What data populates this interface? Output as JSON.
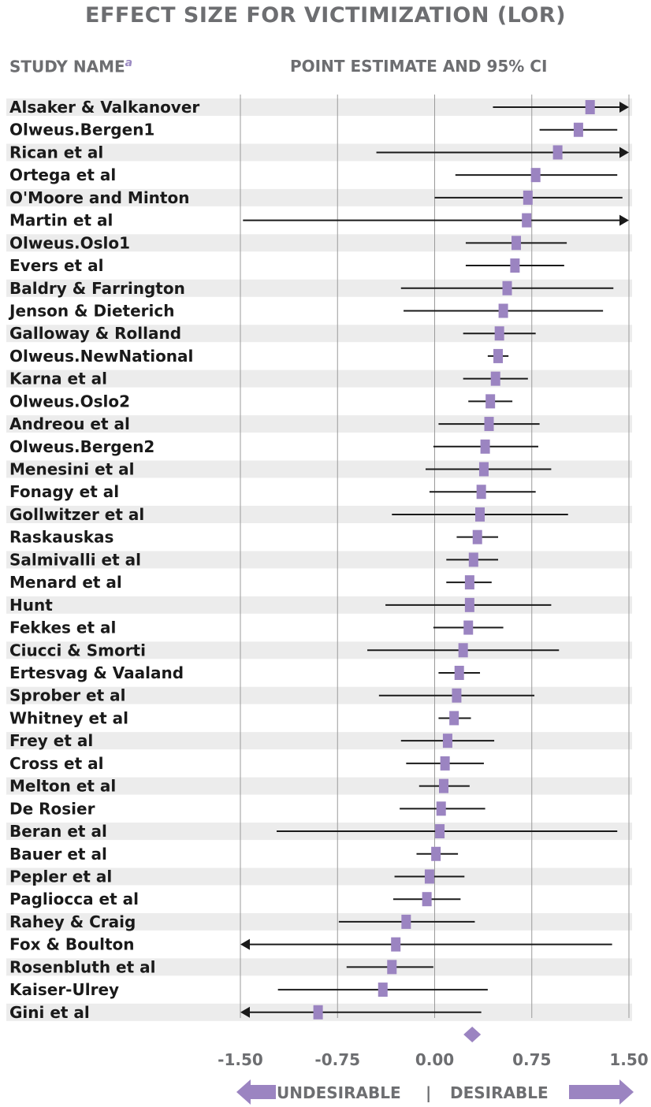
{
  "header": {
    "title": "EFFECT SIZE FOR VICTIMIZATION (LOR)",
    "study_column": "STUDY NAME",
    "study_sup": "a",
    "estimate_column": "POINT ESTIMATE AND 95% CI"
  },
  "footer": {
    "undesirable": "UNDESIRABLE",
    "separator": "|",
    "desirable": "DESIRABLE"
  },
  "colors": {
    "marker": "#9b84c1",
    "band": "#ececec",
    "line": "#1a1a1a",
    "text": "#1a1a1a",
    "grid": "#9a9a9a",
    "header_text": "#6d6e71"
  },
  "chart_data": {
    "type": "forest",
    "xlim": [
      -1.5,
      1.5
    ],
    "x_ticks": [
      -1.5,
      -0.75,
      0.0,
      0.75,
      1.5
    ],
    "x_tick_labels": [
      "-1.50",
      "-0.75",
      "0.00",
      "0.75",
      "1.50"
    ],
    "grid": true,
    "arrow_beyond_axis": true,
    "summary": {
      "estimate": 0.29
    },
    "studies": [
      {
        "name": "Alsaker & Valkanover",
        "estimate": 1.2,
        "lower": 0.45,
        "upper": 1.75
      },
      {
        "name": "Olweus.Bergen1",
        "estimate": 1.11,
        "lower": 0.81,
        "upper": 1.41
      },
      {
        "name": "Rican et al",
        "estimate": 0.95,
        "lower": -0.45,
        "upper": 1.75
      },
      {
        "name": "Ortega et al",
        "estimate": 0.78,
        "lower": 0.16,
        "upper": 1.41
      },
      {
        "name": "O'Moore and Minton",
        "estimate": 0.72,
        "lower": 0.0,
        "upper": 1.45
      },
      {
        "name": "Martin et al",
        "estimate": 0.71,
        "lower": -1.48,
        "upper": 1.75
      },
      {
        "name": "Olweus.Oslo1",
        "estimate": 0.63,
        "lower": 0.24,
        "upper": 1.02
      },
      {
        "name": "Evers et al",
        "estimate": 0.62,
        "lower": 0.24,
        "upper": 1.0
      },
      {
        "name": "Baldry & Farrington",
        "estimate": 0.56,
        "lower": -0.26,
        "upper": 1.38
      },
      {
        "name": "Jenson & Dieterich",
        "estimate": 0.53,
        "lower": -0.24,
        "upper": 1.3
      },
      {
        "name": "Galloway & Rolland",
        "estimate": 0.5,
        "lower": 0.22,
        "upper": 0.78
      },
      {
        "name": "Olweus.NewNational",
        "estimate": 0.49,
        "lower": 0.41,
        "upper": 0.57
      },
      {
        "name": "Karna et al",
        "estimate": 0.47,
        "lower": 0.22,
        "upper": 0.72
      },
      {
        "name": "Olweus.Oslo2",
        "estimate": 0.43,
        "lower": 0.26,
        "upper": 0.6
      },
      {
        "name": "Andreou et al",
        "estimate": 0.42,
        "lower": 0.03,
        "upper": 0.81
      },
      {
        "name": "Olweus.Bergen2",
        "estimate": 0.39,
        "lower": -0.01,
        "upper": 0.8
      },
      {
        "name": "Menesini et al",
        "estimate": 0.38,
        "lower": -0.07,
        "upper": 0.9
      },
      {
        "name": "Fonagy et al",
        "estimate": 0.36,
        "lower": -0.04,
        "upper": 0.78
      },
      {
        "name": "Gollwitzer et al",
        "estimate": 0.35,
        "lower": -0.33,
        "upper": 1.03
      },
      {
        "name": "Raskauskas",
        "estimate": 0.33,
        "lower": 0.17,
        "upper": 0.49
      },
      {
        "name": "Salmivalli et al",
        "estimate": 0.3,
        "lower": 0.09,
        "upper": 0.49
      },
      {
        "name": "Menard et al",
        "estimate": 0.27,
        "lower": 0.09,
        "upper": 0.44
      },
      {
        "name": "Hunt",
        "estimate": 0.27,
        "lower": -0.38,
        "upper": 0.9
      },
      {
        "name": "Fekkes et al",
        "estimate": 0.26,
        "lower": -0.01,
        "upper": 0.53
      },
      {
        "name": "Ciucci & Smorti",
        "estimate": 0.22,
        "lower": -0.52,
        "upper": 0.96
      },
      {
        "name": "Ertesvag & Vaaland",
        "estimate": 0.19,
        "lower": 0.03,
        "upper": 0.35
      },
      {
        "name": "Sprober et al",
        "estimate": 0.17,
        "lower": -0.43,
        "upper": 0.77
      },
      {
        "name": "Whitney et al",
        "estimate": 0.15,
        "lower": 0.03,
        "upper": 0.28
      },
      {
        "name": "Frey et al",
        "estimate": 0.1,
        "lower": -0.26,
        "upper": 0.46
      },
      {
        "name": "Cross et al",
        "estimate": 0.08,
        "lower": -0.22,
        "upper": 0.38
      },
      {
        "name": "Melton et al",
        "estimate": 0.07,
        "lower": -0.12,
        "upper": 0.27
      },
      {
        "name": "De Rosier",
        "estimate": 0.05,
        "lower": -0.27,
        "upper": 0.39
      },
      {
        "name": "Beran et al",
        "estimate": 0.04,
        "lower": -1.22,
        "upper": 1.41
      },
      {
        "name": "Bauer et al",
        "estimate": 0.01,
        "lower": -0.14,
        "upper": 0.18
      },
      {
        "name": "Pepler et al",
        "estimate": -0.04,
        "lower": -0.31,
        "upper": 0.23
      },
      {
        "name": "Pagliocca et al",
        "estimate": -0.06,
        "lower": -0.32,
        "upper": 0.2
      },
      {
        "name": "Rahey & Craig",
        "estimate": -0.22,
        "lower": -0.74,
        "upper": 0.31
      },
      {
        "name": "Fox & Boulton",
        "estimate": -0.3,
        "lower": -1.75,
        "upper": 1.37
      },
      {
        "name": "Rosenbluth et al",
        "estimate": -0.33,
        "lower": -0.68,
        "upper": -0.01
      },
      {
        "name": "Kaiser-Ulrey",
        "estimate": -0.4,
        "lower": -1.21,
        "upper": 0.41
      },
      {
        "name": "Gini et al",
        "estimate": -0.9,
        "lower": -1.75,
        "upper": 0.36
      }
    ]
  }
}
